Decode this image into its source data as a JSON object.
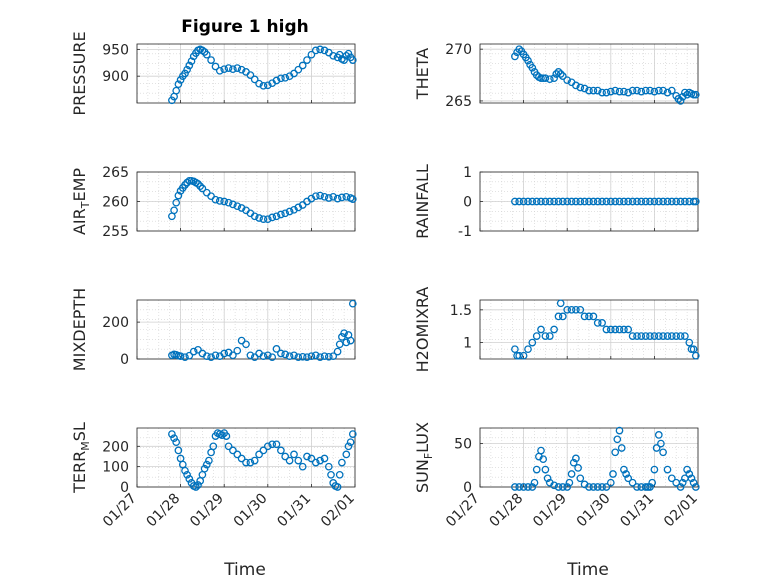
{
  "figure": {
    "title": "Figure 1 high",
    "xlabel": "Time"
  },
  "colors": {
    "marker": "#0072BD",
    "axis": "#262626",
    "grid": "#d0d0d0",
    "background": "#ffffff"
  },
  "chart_data": [
    {
      "type": "scatter",
      "id": "pressure",
      "ylabel": "PRESSURE",
      "xticks": [
        "01/27",
        "01/28",
        "01/29",
        "01/30",
        "01/31",
        "02/01"
      ],
      "ylim": [
        850,
        960
      ],
      "yticks": [
        900,
        950
      ],
      "x": [
        0.8,
        0.85,
        0.9,
        0.95,
        1.0,
        1.05,
        1.1,
        1.15,
        1.2,
        1.25,
        1.3,
        1.35,
        1.4,
        1.45,
        1.5,
        1.55,
        1.6,
        1.7,
        1.8,
        1.9,
        2.0,
        2.1,
        2.2,
        2.3,
        2.4,
        2.5,
        2.6,
        2.7,
        2.8,
        2.9,
        3.0,
        3.1,
        3.2,
        3.3,
        3.4,
        3.5,
        3.6,
        3.7,
        3.8,
        3.9,
        4.0,
        4.1,
        4.2,
        4.3,
        4.4,
        4.5,
        4.6,
        4.65,
        4.7,
        4.75,
        4.8,
        4.85,
        4.9,
        4.95
      ],
      "y": [
        855,
        862,
        873,
        885,
        893,
        900,
        905,
        912,
        920,
        928,
        937,
        943,
        948,
        950,
        948,
        945,
        940,
        930,
        918,
        910,
        913,
        915,
        913,
        915,
        912,
        908,
        902,
        894,
        886,
        882,
        883,
        887,
        892,
        896,
        897,
        900,
        905,
        912,
        920,
        930,
        940,
        948,
        950,
        948,
        944,
        938,
        935,
        940,
        932,
        930,
        938,
        942,
        935,
        930
      ]
    },
    {
      "type": "scatter",
      "id": "theta",
      "ylabel": "THETA",
      "xticks": [
        "01/27",
        "01/28",
        "01/29",
        "01/30",
        "01/31",
        "02/01"
      ],
      "ylim": [
        264.8,
        270.5
      ],
      "yticks": [
        265,
        270
      ],
      "x": [
        0.8,
        0.85,
        0.9,
        0.95,
        1.0,
        1.05,
        1.1,
        1.15,
        1.2,
        1.25,
        1.3,
        1.35,
        1.4,
        1.45,
        1.5,
        1.6,
        1.7,
        1.75,
        1.8,
        1.85,
        1.9,
        2.0,
        2.1,
        2.2,
        2.3,
        2.4,
        2.5,
        2.6,
        2.7,
        2.8,
        2.9,
        3.0,
        3.1,
        3.2,
        3.3,
        3.4,
        3.5,
        3.6,
        3.7,
        3.8,
        3.9,
        4.0,
        4.1,
        4.2,
        4.3,
        4.4,
        4.5,
        4.55,
        4.6,
        4.65,
        4.7,
        4.75,
        4.8,
        4.85,
        4.9,
        4.95
      ],
      "y": [
        269.3,
        269.7,
        270.0,
        269.8,
        269.5,
        269.2,
        268.9,
        268.5,
        268.2,
        267.8,
        267.5,
        267.3,
        267.2,
        267.2,
        267.2,
        267.1,
        267.2,
        267.6,
        267.8,
        267.6,
        267.4,
        267.0,
        266.8,
        266.5,
        266.3,
        266.2,
        266.0,
        266.0,
        266.0,
        265.8,
        265.8,
        265.9,
        266.0,
        265.9,
        265.9,
        265.8,
        266.0,
        266.0,
        265.9,
        266.0,
        266.0,
        265.9,
        266.0,
        266.0,
        265.8,
        266.0,
        265.5,
        265.2,
        265.0,
        265.4,
        265.8,
        265.6,
        265.8,
        265.7,
        265.6,
        265.6
      ]
    },
    {
      "type": "scatter",
      "id": "air_temp",
      "ylabel": "AIR_TEMP",
      "xticks": [
        "01/27",
        "01/28",
        "01/29",
        "01/30",
        "01/31",
        "02/01"
      ],
      "ylim": [
        255,
        265
      ],
      "yticks": [
        255,
        260,
        265
      ],
      "x": [
        0.8,
        0.85,
        0.9,
        0.95,
        1.0,
        1.05,
        1.1,
        1.15,
        1.2,
        1.25,
        1.3,
        1.35,
        1.4,
        1.45,
        1.5,
        1.6,
        1.7,
        1.8,
        1.9,
        2.0,
        2.1,
        2.2,
        2.3,
        2.4,
        2.5,
        2.6,
        2.7,
        2.8,
        2.9,
        3.0,
        3.1,
        3.2,
        3.3,
        3.4,
        3.5,
        3.6,
        3.7,
        3.8,
        3.9,
        4.0,
        4.1,
        4.2,
        4.3,
        4.4,
        4.5,
        4.6,
        4.7,
        4.8,
        4.9,
        4.95
      ],
      "y": [
        257.5,
        258.5,
        259.8,
        261.0,
        261.8,
        262.3,
        262.8,
        263.2,
        263.5,
        263.5,
        263.4,
        263.2,
        263.0,
        262.6,
        262.2,
        261.5,
        260.9,
        260.3,
        260.1,
        260.0,
        259.8,
        259.5,
        259.2,
        258.9,
        258.5,
        258.0,
        257.5,
        257.2,
        257.0,
        257.0,
        257.3,
        257.5,
        257.8,
        258.0,
        258.3,
        258.6,
        259.0,
        259.4,
        260.0,
        260.5,
        260.9,
        261.0,
        260.8,
        260.6,
        260.8,
        260.5,
        260.7,
        260.8,
        260.6,
        260.4
      ]
    },
    {
      "type": "scatter",
      "id": "rainfall",
      "ylabel": "RAINFALL",
      "xticks": [
        "01/27",
        "01/28",
        "01/29",
        "01/30",
        "01/31",
        "02/01"
      ],
      "ylim": [
        -1,
        1
      ],
      "yticks": [
        -1,
        0,
        1
      ],
      "x": [
        0.8,
        0.9,
        1.0,
        1.1,
        1.2,
        1.3,
        1.4,
        1.5,
        1.6,
        1.7,
        1.8,
        1.9,
        2.0,
        2.1,
        2.2,
        2.3,
        2.4,
        2.5,
        2.6,
        2.7,
        2.8,
        2.9,
        3.0,
        3.1,
        3.2,
        3.3,
        3.4,
        3.5,
        3.6,
        3.7,
        3.8,
        3.9,
        4.0,
        4.1,
        4.2,
        4.3,
        4.4,
        4.5,
        4.6,
        4.7,
        4.8,
        4.9,
        4.95
      ],
      "y": [
        0,
        0,
        0,
        0,
        0,
        0,
        0,
        0,
        0,
        0,
        0,
        0,
        0,
        0,
        0,
        0,
        0,
        0,
        0,
        0,
        0,
        0,
        0,
        0,
        0,
        0,
        0,
        0,
        0,
        0,
        0,
        0,
        0,
        0,
        0,
        0,
        0,
        0,
        0,
        0,
        0,
        0,
        0
      ]
    },
    {
      "type": "scatter",
      "id": "mixdepth",
      "ylabel": "MIXDEPTH",
      "xticks": [
        "01/27",
        "01/28",
        "01/29",
        "01/30",
        "01/31",
        "02/01"
      ],
      "ylim": [
        0,
        320
      ],
      "yticks": [
        0,
        200
      ],
      "x": [
        0.8,
        0.85,
        0.9,
        0.95,
        1.0,
        1.1,
        1.2,
        1.3,
        1.4,
        1.5,
        1.6,
        1.7,
        1.8,
        1.9,
        2.0,
        2.1,
        2.2,
        2.3,
        2.4,
        2.5,
        2.6,
        2.7,
        2.8,
        2.9,
        3.0,
        3.1,
        3.2,
        3.3,
        3.4,
        3.5,
        3.6,
        3.7,
        3.8,
        3.9,
        4.0,
        4.1,
        4.2,
        4.3,
        4.4,
        4.5,
        4.6,
        4.65,
        4.7,
        4.75,
        4.8,
        4.85,
        4.9,
        4.95
      ],
      "y": [
        20,
        25,
        22,
        18,
        15,
        10,
        18,
        40,
        50,
        30,
        15,
        10,
        20,
        15,
        30,
        35,
        20,
        45,
        100,
        80,
        20,
        10,
        30,
        15,
        20,
        10,
        55,
        30,
        25,
        15,
        20,
        10,
        12,
        10,
        15,
        20,
        10,
        15,
        12,
        15,
        40,
        80,
        120,
        140,
        90,
        130,
        100,
        300
      ]
    },
    {
      "type": "scatter",
      "id": "h2omixra",
      "ylabel": "H2OMIXRA",
      "xticks": [
        "01/27",
        "01/28",
        "01/29",
        "01/30",
        "01/31",
        "02/01"
      ],
      "ylim": [
        0.75,
        1.65
      ],
      "yticks": [
        1,
        1.5
      ],
      "x": [
        0.8,
        0.85,
        0.9,
        1.0,
        1.1,
        1.2,
        1.3,
        1.4,
        1.5,
        1.6,
        1.7,
        1.8,
        1.85,
        1.9,
        2.0,
        2.1,
        2.2,
        2.3,
        2.4,
        2.5,
        2.6,
        2.7,
        2.8,
        2.9,
        3.0,
        3.1,
        3.2,
        3.3,
        3.4,
        3.5,
        3.6,
        3.7,
        3.8,
        3.9,
        4.0,
        4.1,
        4.2,
        4.3,
        4.4,
        4.5,
        4.6,
        4.7,
        4.8,
        4.85,
        4.9,
        4.95
      ],
      "y": [
        0.9,
        0.8,
        0.8,
        0.8,
        0.9,
        1.0,
        1.1,
        1.2,
        1.1,
        1.1,
        1.2,
        1.4,
        1.6,
        1.4,
        1.5,
        1.5,
        1.5,
        1.5,
        1.4,
        1.4,
        1.4,
        1.3,
        1.3,
        1.2,
        1.2,
        1.2,
        1.2,
        1.2,
        1.2,
        1.1,
        1.1,
        1.1,
        1.1,
        1.1,
        1.1,
        1.1,
        1.1,
        1.1,
        1.1,
        1.1,
        1.1,
        1.1,
        1.0,
        0.9,
        0.9,
        0.8
      ]
    },
    {
      "type": "scatter",
      "id": "terr_msl",
      "ylabel": "TERR_MSL",
      "xticks": [
        "01/27",
        "01/28",
        "01/29",
        "01/30",
        "01/31",
        "02/01"
      ],
      "ylim": [
        0,
        290
      ],
      "yticks": [
        0,
        100,
        200
      ],
      "x": [
        0.8,
        0.85,
        0.9,
        0.95,
        1.0,
        1.05,
        1.1,
        1.15,
        1.2,
        1.25,
        1.3,
        1.35,
        1.4,
        1.45,
        1.5,
        1.55,
        1.6,
        1.65,
        1.7,
        1.75,
        1.8,
        1.85,
        1.9,
        1.95,
        2.0,
        2.05,
        2.1,
        2.2,
        2.3,
        2.4,
        2.5,
        2.6,
        2.7,
        2.8,
        2.9,
        3.0,
        3.1,
        3.2,
        3.3,
        3.4,
        3.5,
        3.6,
        3.7,
        3.8,
        3.9,
        4.0,
        4.1,
        4.2,
        4.3,
        4.4,
        4.45,
        4.5,
        4.55,
        4.6,
        4.65,
        4.7,
        4.8,
        4.85,
        4.9,
        4.95
      ],
      "y": [
        260,
        240,
        220,
        180,
        140,
        110,
        80,
        60,
        40,
        20,
        5,
        0,
        10,
        30,
        60,
        90,
        110,
        130,
        170,
        200,
        250,
        265,
        260,
        255,
        265,
        250,
        200,
        180,
        160,
        140,
        120,
        120,
        130,
        160,
        180,
        200,
        210,
        210,
        180,
        150,
        130,
        160,
        130,
        100,
        150,
        140,
        120,
        130,
        140,
        100,
        60,
        20,
        5,
        0,
        60,
        120,
        160,
        200,
        220,
        260
      ]
    },
    {
      "type": "scatter",
      "id": "sun_flux",
      "ylabel": "SUN_FLUX",
      "xticks": [
        "01/27",
        "01/28",
        "01/29",
        "01/30",
        "01/31",
        "02/01"
      ],
      "ylim": [
        0,
        68
      ],
      "yticks": [
        0,
        50
      ],
      "x": [
        0.8,
        0.9,
        1.0,
        1.1,
        1.2,
        1.25,
        1.3,
        1.35,
        1.4,
        1.45,
        1.5,
        1.55,
        1.6,
        1.7,
        1.8,
        1.9,
        2.0,
        2.05,
        2.1,
        2.15,
        2.2,
        2.25,
        2.3,
        2.4,
        2.5,
        2.6,
        2.7,
        2.8,
        2.9,
        3.0,
        3.05,
        3.1,
        3.15,
        3.2,
        3.25,
        3.3,
        3.35,
        3.4,
        3.5,
        3.6,
        3.7,
        3.8,
        3.85,
        3.9,
        3.95,
        4.0,
        4.05,
        4.1,
        4.15,
        4.2,
        4.3,
        4.4,
        4.5,
        4.6,
        4.65,
        4.7,
        4.75,
        4.8,
        4.85,
        4.9,
        4.95
      ],
      "y": [
        0,
        0,
        0,
        0,
        0,
        5,
        20,
        35,
        42,
        32,
        20,
        10,
        5,
        2,
        0,
        0,
        0,
        5,
        15,
        28,
        33,
        22,
        10,
        3,
        0,
        0,
        0,
        0,
        0,
        5,
        15,
        40,
        55,
        65,
        45,
        20,
        15,
        10,
        5,
        0,
        0,
        0,
        0,
        0,
        5,
        20,
        45,
        60,
        50,
        40,
        20,
        10,
        5,
        0,
        5,
        10,
        20,
        15,
        10,
        5,
        0
      ]
    }
  ]
}
